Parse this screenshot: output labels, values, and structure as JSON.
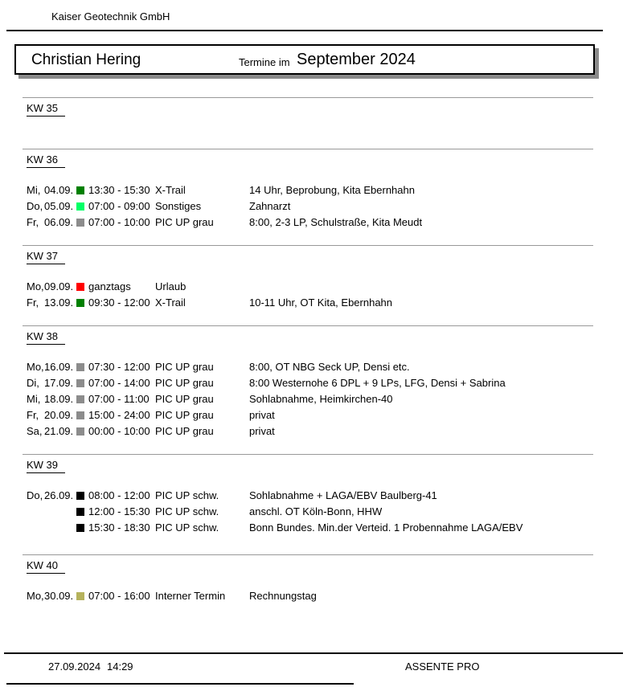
{
  "header": {
    "company": "Kaiser Geotechnik GmbH",
    "person": "Christian Hering",
    "title_prefix": "Termine im",
    "title_month": "September 2024"
  },
  "category_colors": {
    "x_trail": "#008000",
    "sonstiges": "#00FF66",
    "pic_up_grau": "#8C8C8C",
    "urlaub": "#FF0000",
    "pic_up_schw": "#000000",
    "interner_termin": "#B5B25C"
  },
  "sections": [
    {
      "label": "KW 35",
      "rows": []
    },
    {
      "label": "KW 36",
      "rows": [
        {
          "day": "Mi,",
          "date": "04.09.",
          "color": "#008000",
          "time": "13:30 - 15:30",
          "category": "X-Trail",
          "description": "14 Uhr, Beprobung, Kita Ebernhahn"
        },
        {
          "day": "Do,",
          "date": "05.09.",
          "color": "#00FF66",
          "time": "07:00 - 09:00",
          "category": "Sonstiges",
          "description": "Zahnarzt"
        },
        {
          "day": "Fr,",
          "date": "06.09.",
          "color": "#8C8C8C",
          "time": "07:00 - 10:00",
          "category": "PIC UP grau",
          "description": "8:00, 2-3 LP, Schulstraße, Kita Meudt"
        }
      ]
    },
    {
      "label": "KW 37",
      "rows": [
        {
          "day": "Mo,",
          "date": "09.09.",
          "color": "#FF0000",
          "time": "ganztags",
          "category": "Urlaub",
          "description": ""
        },
        {
          "day": "Fr,",
          "date": "13.09.",
          "color": "#008000",
          "time": "09:30 - 12:00",
          "category": "X-Trail",
          "description": "10-11 Uhr, OT Kita, Ebernhahn"
        }
      ]
    },
    {
      "label": "KW 38",
      "rows": [
        {
          "day": "Mo,",
          "date": "16.09.",
          "color": "#8C8C8C",
          "time": "07:30 - 12:00",
          "category": "PIC UP grau",
          "description": "8:00, OT NBG Seck UP, Densi etc."
        },
        {
          "day": "Di,",
          "date": "17.09.",
          "color": "#8C8C8C",
          "time": "07:00 - 14:00",
          "category": "PIC UP grau",
          "description": "8:00 Westernohe 6 DPL + 9 LPs, LFG, Densi + Sabrina"
        },
        {
          "day": "Mi,",
          "date": "18.09.",
          "color": "#8C8C8C",
          "time": "07:00 - 11:00",
          "category": "PIC UP grau",
          "description": "Sohlabnahme, Heimkirchen-40"
        },
        {
          "day": "Fr,",
          "date": "20.09.",
          "color": "#8C8C8C",
          "time": "15:00 - 24:00",
          "category": "PIC UP grau",
          "description": "privat"
        },
        {
          "day": "Sa,",
          "date": "21.09.",
          "color": "#8C8C8C",
          "time": "00:00 - 10:00",
          "category": "PIC UP grau",
          "description": "privat"
        }
      ]
    },
    {
      "label": "KW 39",
      "rows": [
        {
          "day": "Do,",
          "date": "26.09.",
          "color": "#000000",
          "time": "08:00 - 12:00",
          "category": "PIC UP schw.",
          "description": "Sohlabnahme + LAGA/EBV Baulberg-41"
        },
        {
          "day": "",
          "date": "",
          "color": "#000000",
          "time": "12:00 - 15:30",
          "category": "PIC UP schw.",
          "description": "anschl. OT Köln-Bonn, HHW"
        },
        {
          "day": "",
          "date": "",
          "color": "#000000",
          "time": "15:30 - 18:30",
          "category": "PIC UP schw.",
          "description": "Bonn Bundes. Min.der Verteid. 1 Probennahme LAGA/EBV"
        }
      ]
    },
    {
      "label": "KW 40",
      "rows": [
        {
          "day": "Mo,",
          "date": "30.09.",
          "color": "#B5B25C",
          "time": "07:00 - 16:00",
          "category": "Interner Termin",
          "description": "Rechnungstag"
        }
      ]
    }
  ],
  "footer": {
    "print_date": "27.09.2024",
    "print_time": "14:29",
    "app_name": "ASSENTE PRO"
  }
}
